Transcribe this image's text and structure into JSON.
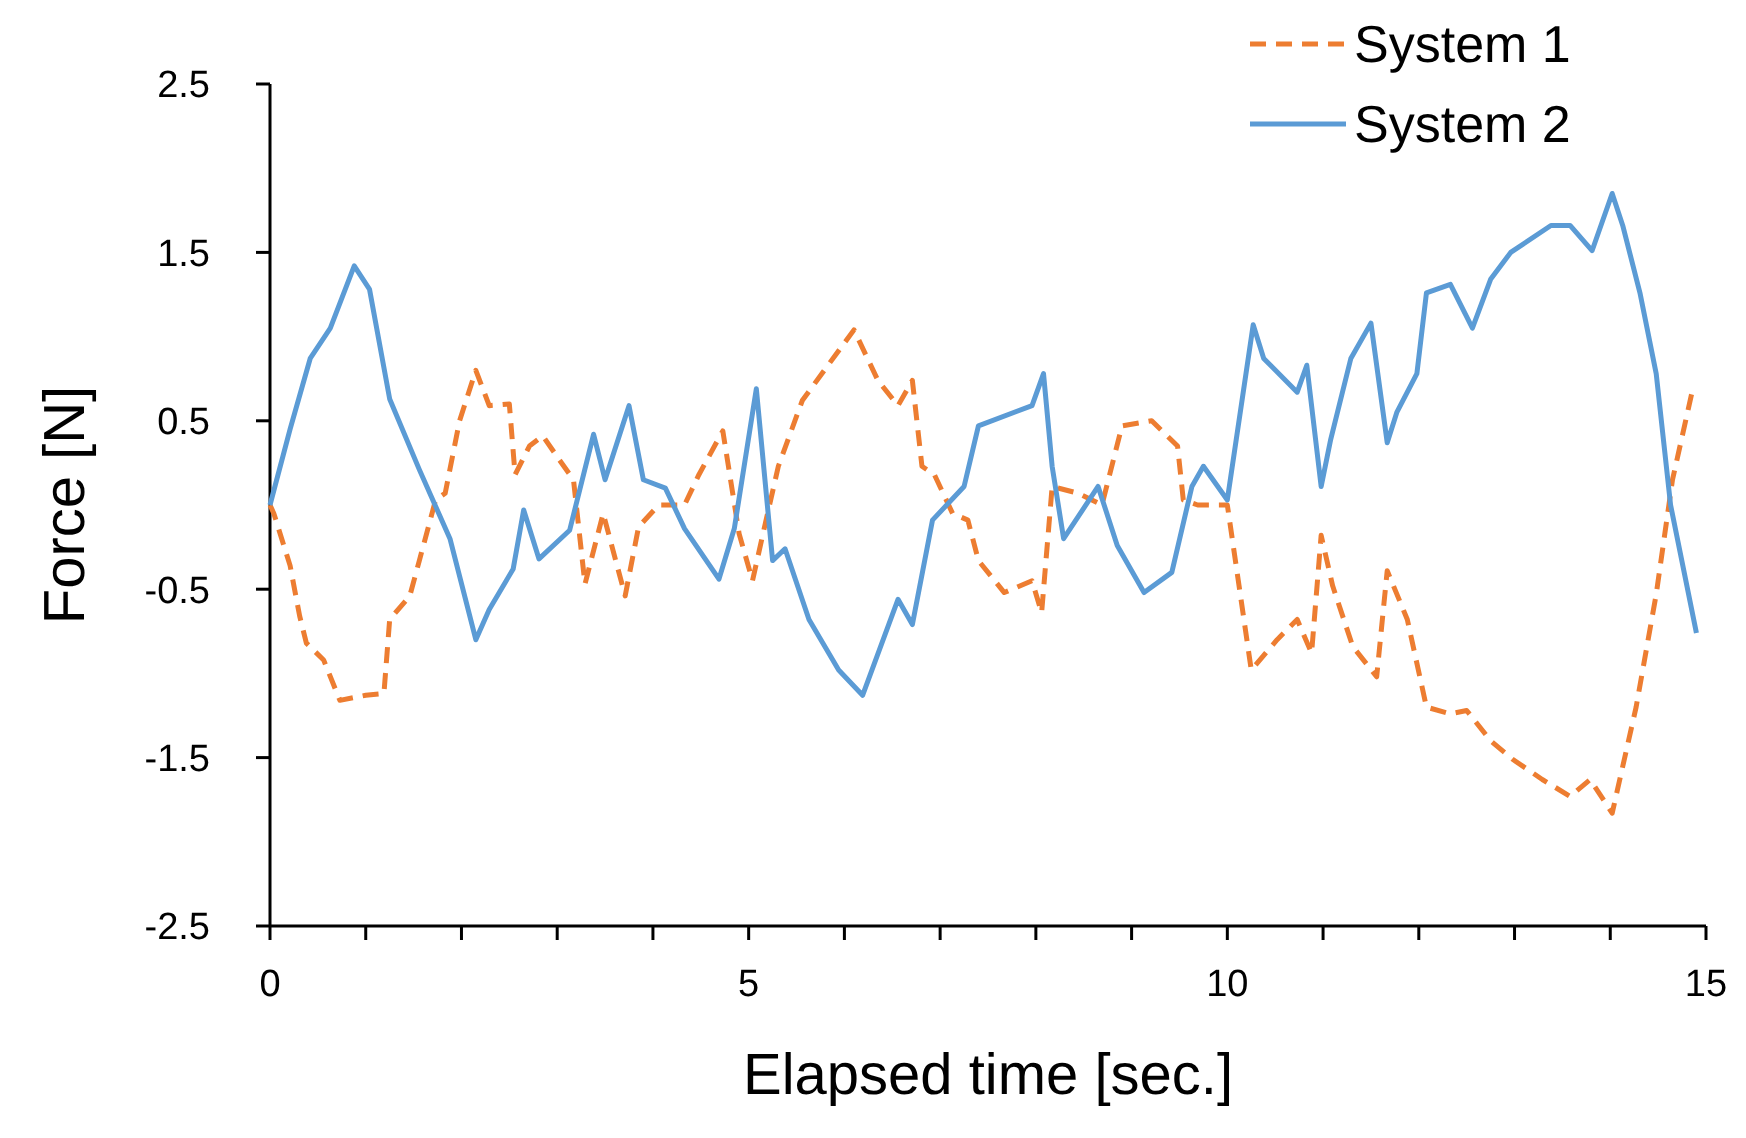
{
  "chart_data": {
    "type": "line",
    "xlabel": "Elapsed time [sec.]",
    "ylabel": "Force [N]",
    "xlim": [
      0,
      15
    ],
    "ylim": [
      -2.5,
      2.5
    ],
    "xticks": [
      0,
      {
        "value": 1,
        "label": null
      },
      {
        "value": 2,
        "label": null
      },
      {
        "value": 3,
        "label": null
      },
      {
        "value": 4,
        "label": null
      },
      5,
      {
        "value": 6,
        "label": null
      },
      {
        "value": 7,
        "label": null
      },
      {
        "value": 8,
        "label": null
      },
      {
        "value": 9,
        "label": null
      },
      10,
      {
        "value": 11,
        "label": null
      },
      {
        "value": 12,
        "label": null
      },
      {
        "value": 13,
        "label": null
      },
      {
        "value": 14,
        "label": null
      },
      15
    ],
    "yticks": [
      -2.5,
      -1.5,
      -0.5,
      0.5,
      1.5,
      2.5
    ],
    "grid": false,
    "legend": "top right",
    "marker": "none",
    "series": [
      {
        "name": "System 1",
        "color": "#ed7d31",
        "line_style": "dashed",
        "x": [
          0,
          0.04,
          0.21,
          0.31,
          0.38,
          0.56,
          0.73,
          1.0,
          1.19,
          1.25,
          1.46,
          1.56,
          1.73,
          1.83,
          1.98,
          2.15,
          2.29,
          2.5,
          2.56,
          2.71,
          2.85,
          3.02,
          3.17,
          3.29,
          3.48,
          3.71,
          3.85,
          4.06,
          4.33,
          4.48,
          4.73,
          4.9,
          5.04,
          5.15,
          5.31,
          5.56,
          5.79,
          6.1,
          6.35,
          6.56,
          6.71,
          6.81,
          6.94,
          7.13,
          7.29,
          7.4,
          7.67,
          7.96,
          8.06,
          8.17,
          8.44,
          8.69,
          8.9,
          9.21,
          9.48,
          9.54,
          9.69,
          10.0,
          10.25,
          10.52,
          10.73,
          10.88,
          10.98,
          11.1,
          11.31,
          11.56,
          11.67,
          11.88,
          12.08,
          12.33,
          12.5,
          12.75,
          12.98,
          13.29,
          13.58,
          13.79,
          14.02,
          14.27,
          14.48,
          14.65,
          14.85
        ],
        "values": [
          0,
          -0.05,
          -0.36,
          -0.66,
          -0.82,
          -0.92,
          -1.16,
          -1.13,
          -1.12,
          -0.68,
          -0.54,
          -0.33,
          0.03,
          0.07,
          0.5,
          0.8,
          0.59,
          0.6,
          0.18,
          0.35,
          0.41,
          0.27,
          0.15,
          -0.47,
          -0.05,
          -0.54,
          -0.13,
          0,
          0,
          0.18,
          0.44,
          -0.17,
          -0.45,
          -0.17,
          0.23,
          0.62,
          0.8,
          1.04,
          0.74,
          0.59,
          0.74,
          0.23,
          0.18,
          -0.05,
          -0.09,
          -0.33,
          -0.52,
          -0.45,
          -0.64,
          0.11,
          0.07,
          0,
          0.47,
          0.5,
          0.35,
          0.03,
          0,
          0,
          -0.98,
          -0.8,
          -0.68,
          -0.88,
          -0.18,
          -0.48,
          -0.84,
          -1.02,
          -0.39,
          -0.68,
          -1.2,
          -1.24,
          -1.22,
          -1.4,
          -1.51,
          -1.63,
          -1.73,
          -1.63,
          -1.83,
          -1.2,
          -0.53,
          0.15,
          0.66
        ]
      },
      {
        "name": "System 2",
        "color": "#5b9bd5",
        "line_style": "solid",
        "x": [
          0,
          0.21,
          0.42,
          0.63,
          0.88,
          1.04,
          1.25,
          1.56,
          1.88,
          2.15,
          2.29,
          2.54,
          2.65,
          2.81,
          3.13,
          3.38,
          3.5,
          3.75,
          3.9,
          4.13,
          4.33,
          4.69,
          4.85,
          5.08,
          5.25,
          5.38,
          5.63,
          5.94,
          6.19,
          6.56,
          6.71,
          6.92,
          7.25,
          7.4,
          7.96,
          8.08,
          8.17,
          8.29,
          8.65,
          8.85,
          9.13,
          9.42,
          9.63,
          9.75,
          10.0,
          10.27,
          10.38,
          10.73,
          10.83,
          10.98,
          11.08,
          11.29,
          11.5,
          11.67,
          11.77,
          11.98,
          12.08,
          12.33,
          12.56,
          12.75,
          12.96,
          13.38,
          13.58,
          13.81,
          14.02,
          14.13,
          14.31,
          14.48,
          14.63,
          14.9
        ],
        "values": [
          0,
          0.45,
          0.87,
          1.05,
          1.42,
          1.28,
          0.63,
          0.21,
          -0.2,
          -0.8,
          -0.62,
          -0.38,
          -0.03,
          -0.32,
          -0.15,
          0.42,
          0.15,
          0.59,
          0.15,
          0.1,
          -0.14,
          -0.44,
          -0.14,
          0.69,
          -0.33,
          -0.26,
          -0.68,
          -0.98,
          -1.13,
          -0.56,
          -0.71,
          -0.09,
          0.11,
          0.47,
          0.59,
          0.78,
          0.23,
          -0.2,
          0.11,
          -0.24,
          -0.52,
          -0.4,
          0.11,
          0.23,
          0.03,
          1.07,
          0.87,
          0.67,
          0.83,
          0.11,
          0.39,
          0.87,
          1.08,
          0.37,
          0.55,
          0.78,
          1.26,
          1.31,
          1.05,
          1.34,
          1.5,
          1.66,
          1.66,
          1.51,
          1.85,
          1.66,
          1.26,
          0.78,
          0,
          -0.76
        ]
      }
    ]
  }
}
